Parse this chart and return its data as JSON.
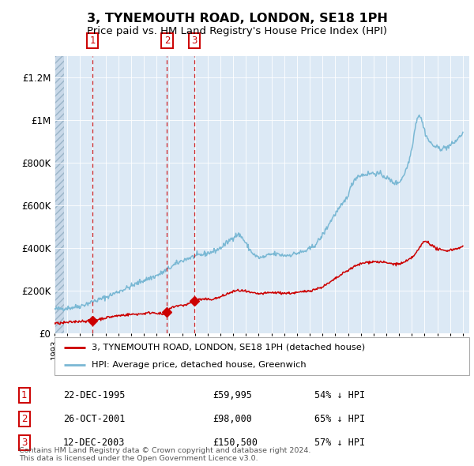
{
  "title": "3, TYNEMOUTH ROAD, LONDON, SE18 1PH",
  "subtitle": "Price paid vs. HM Land Registry's House Price Index (HPI)",
  "title_fontsize": 11.5,
  "subtitle_fontsize": 9.5,
  "hpi_color": "#7ab8d4",
  "price_color": "#cc0000",
  "bg_color": "#dce9f5",
  "grid_color": "#ffffff",
  "ylim": [
    0,
    1300000
  ],
  "yticks": [
    0,
    200000,
    400000,
    600000,
    800000,
    1000000,
    1200000
  ],
  "ytick_labels": [
    "£0",
    "£200K",
    "£400K",
    "£600K",
    "£800K",
    "£1M",
    "£1.2M"
  ],
  "transactions": [
    {
      "num": 1,
      "date": "22-DEC-1995",
      "price": 59995,
      "year": 1995.97,
      "pct": "54%",
      "dir": "↓"
    },
    {
      "num": 2,
      "date": "26-OCT-2001",
      "price": 98000,
      "year": 2001.82,
      "pct": "65%",
      "dir": "↓"
    },
    {
      "num": 3,
      "date": "12-DEC-2003",
      "price": 150500,
      "year": 2003.95,
      "pct": "57%",
      "dir": "↓"
    }
  ],
  "legend_label_red": "3, TYNEMOUTH ROAD, LONDON, SE18 1PH (detached house)",
  "legend_label_blue": "HPI: Average price, detached house, Greenwich",
  "footer": "Contains HM Land Registry data © Crown copyright and database right 2024.\nThis data is licensed under the Open Government Licence v3.0.",
  "xmin": 1993.0,
  "xmax": 2025.5,
  "hatch_end": 1993.75
}
